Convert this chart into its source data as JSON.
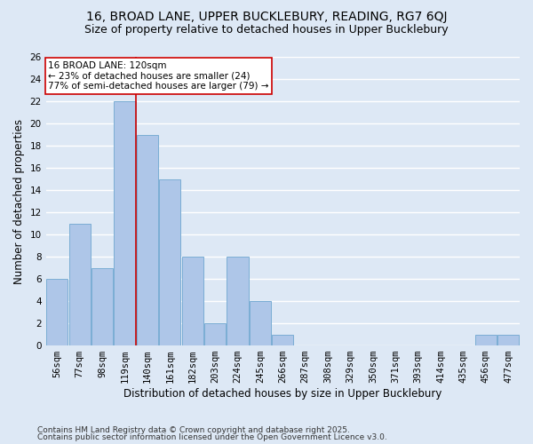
{
  "title1": "16, BROAD LANE, UPPER BUCKLEBURY, READING, RG7 6QJ",
  "title2": "Size of property relative to detached houses in Upper Bucklebury",
  "xlabel": "Distribution of detached houses by size in Upper Bucklebury",
  "ylabel": "Number of detached properties",
  "categories": [
    "56sqm",
    "77sqm",
    "98sqm",
    "119sqm",
    "140sqm",
    "161sqm",
    "182sqm",
    "203sqm",
    "224sqm",
    "245sqm",
    "266sqm",
    "287sqm",
    "308sqm",
    "329sqm",
    "350sqm",
    "371sqm",
    "393sqm",
    "414sqm",
    "435sqm",
    "456sqm",
    "477sqm"
  ],
  "values": [
    6,
    11,
    7,
    22,
    19,
    15,
    8,
    2,
    8,
    4,
    1,
    0,
    0,
    0,
    0,
    0,
    0,
    0,
    0,
    1,
    1
  ],
  "bar_color": "#aec6e8",
  "bar_edge_color": "#7aadd4",
  "background_color": "#dde8f5",
  "grid_color": "#ffffff",
  "red_line_x": 3.5,
  "red_line_label": "16 BROAD LANE: 120sqm",
  "annotation_line1": "← 23% of detached houses are smaller (24)",
  "annotation_line2": "77% of semi-detached houses are larger (79) →",
  "annotation_box_color": "#ffffff",
  "annotation_box_edge": "#cc0000",
  "ylim": [
    0,
    26
  ],
  "yticks": [
    0,
    2,
    4,
    6,
    8,
    10,
    12,
    14,
    16,
    18,
    20,
    22,
    24,
    26
  ],
  "footnote1": "Contains HM Land Registry data © Crown copyright and database right 2025.",
  "footnote2": "Contains public sector information licensed under the Open Government Licence v3.0.",
  "title1_fontsize": 10,
  "title2_fontsize": 9,
  "xlabel_fontsize": 8.5,
  "ylabel_fontsize": 8.5,
  "tick_fontsize": 7.5,
  "annot_fontsize": 7.5,
  "footnote_fontsize": 6.5
}
